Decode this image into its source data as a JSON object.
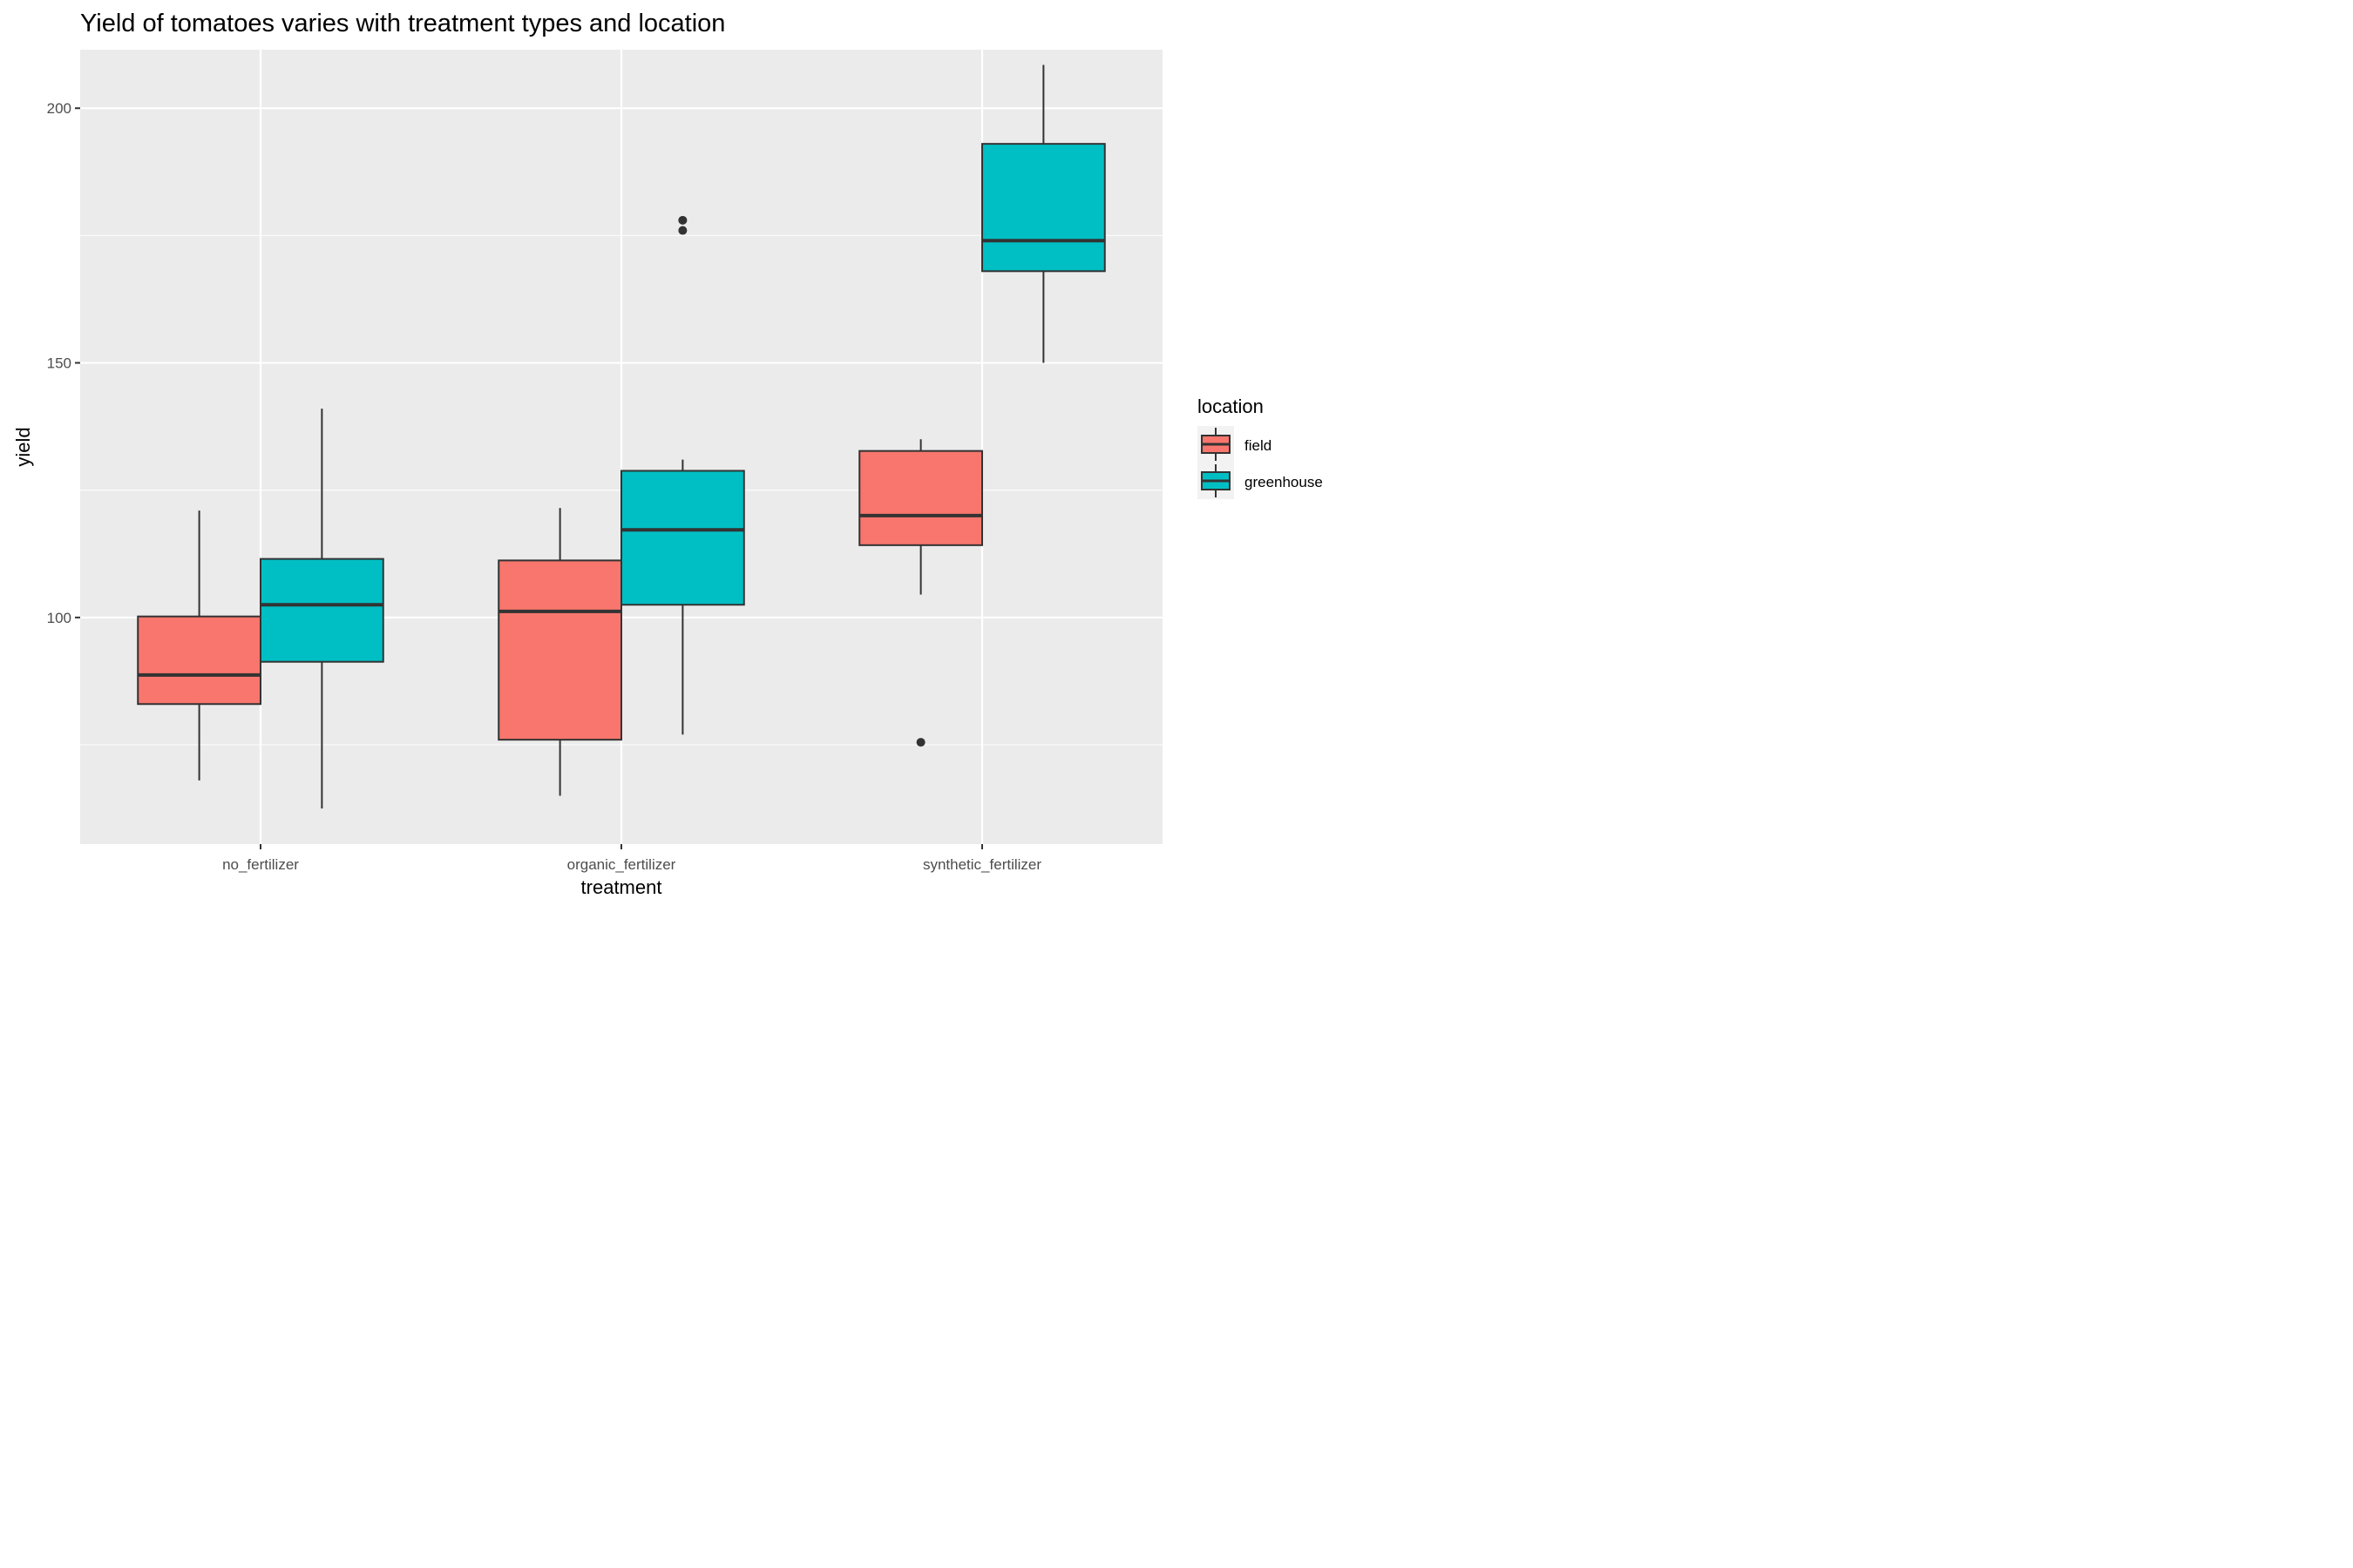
{
  "chart_data": {
    "type": "boxplot",
    "title": "Yield of tomatoes varies with treatment types and location",
    "xlabel": "treatment",
    "ylabel": "yield",
    "categories": [
      "no_fertilizer",
      "organic_fertilizer",
      "synthetic_fertilizer"
    ],
    "ylim": [
      55.5,
      211.5
    ],
    "yticks": [
      100,
      150,
      200
    ],
    "grid": true,
    "legend": {
      "title": "location",
      "position": "right",
      "entries": [
        "field",
        "greenhouse"
      ]
    },
    "colors": {
      "field": "#F8766D",
      "greenhouse": "#00BFC4",
      "panel": "#EBEBEB",
      "grid": "#FFFFFF",
      "outline": "#333333"
    },
    "series": [
      {
        "name": "field",
        "boxes": [
          {
            "category": "no_fertilizer",
            "lower_whisker": 68,
            "q1": 83,
            "median": 88.7,
            "q3": 100.2,
            "upper_whisker": 121,
            "outliers": []
          },
          {
            "category": "organic_fertilizer",
            "lower_whisker": 65,
            "q1": 76,
            "median": 101.2,
            "q3": 111.2,
            "upper_whisker": 121.5,
            "outliers": []
          },
          {
            "category": "synthetic_fertilizer",
            "lower_whisker": 104.5,
            "q1": 114.2,
            "median": 120,
            "q3": 132.7,
            "upper_whisker": 135,
            "outliers": [
              75.5
            ]
          }
        ]
      },
      {
        "name": "greenhouse",
        "boxes": [
          {
            "category": "no_fertilizer",
            "lower_whisker": 62.5,
            "q1": 91.3,
            "median": 102.5,
            "q3": 111.5,
            "upper_whisker": 141,
            "outliers": []
          },
          {
            "category": "organic_fertilizer",
            "lower_whisker": 77,
            "q1": 102.5,
            "median": 117.2,
            "q3": 128.8,
            "upper_whisker": 131,
            "outliers": [
              176,
              178
            ]
          },
          {
            "category": "synthetic_fertilizer",
            "lower_whisker": 150,
            "q1": 168,
            "median": 174,
            "q3": 193,
            "upper_whisker": 208.5,
            "outliers": []
          }
        ]
      }
    ]
  }
}
